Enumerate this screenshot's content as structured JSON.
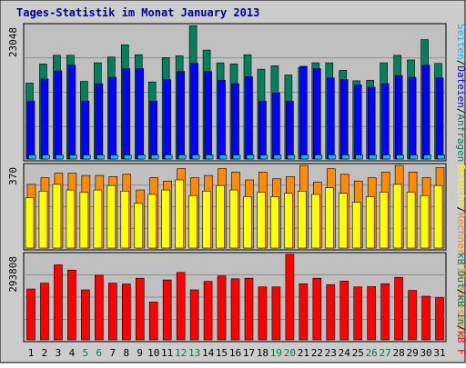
{
  "title": "Tages-Statistik im Monat January 2013",
  "colors": {
    "background": "#cccccc",
    "panel": "#c0c0c0",
    "border": "#000000",
    "title_text": "#0000aa",
    "anfragen": "#00805c",
    "dateien": "#0000ff",
    "seiten": "#00c0ff",
    "rechner": "#ff8c00",
    "besuche": "#ffff00",
    "kb_f": "#ff0000",
    "weekend_label": "#008040",
    "weekday_label": "#000000"
  },
  "chart_data": [
    {
      "type": "bar",
      "ymax_label": "23048",
      "legend": [
        {
          "name": "Anfragen",
          "color": "#00805c"
        },
        {
          "name": "Dateien",
          "color": "#0000ff"
        },
        {
          "name": "Seiten",
          "color": "#00c0ff"
        }
      ],
      "separators": [
        "/"
      ],
      "series": [
        {
          "name": "Anfragen",
          "values": [
            13100,
            16400,
            17900,
            17900,
            13400,
            16600,
            17600,
            19700,
            18000,
            13300,
            17500,
            17800,
            23000,
            18800,
            16600,
            16400,
            18000,
            15500,
            16100,
            14500,
            15800,
            16600,
            16600,
            15300,
            13500,
            13600,
            16600,
            17900,
            17100,
            20600,
            16500
          ]
        },
        {
          "name": "Dateien",
          "values": [
            10000,
            13800,
            15200,
            16200,
            10000,
            13000,
            14100,
            15600,
            15600,
            10000,
            13700,
            15100,
            16500,
            15100,
            13600,
            13000,
            14200,
            10000,
            11400,
            10000,
            16000,
            15600,
            14000,
            13700,
            12800,
            12400,
            13000,
            14400,
            14100,
            16200,
            14000
          ]
        },
        {
          "name": "Seiten",
          "values": [
            700,
            700,
            700,
            700,
            700,
            700,
            700,
            700,
            700,
            700,
            700,
            700,
            700,
            700,
            700,
            700,
            700,
            700,
            700,
            700,
            700,
            700,
            700,
            700,
            700,
            700,
            700,
            700,
            700,
            700,
            700
          ]
        }
      ],
      "ymax": 23048
    },
    {
      "type": "bar",
      "ymax_label": "370",
      "legend": [
        {
          "name": "Rechner (IP-Adressen)",
          "color": "#ff8c00"
        },
        {
          "name": "Besuche",
          "color": "#ffff00"
        }
      ],
      "separators": [
        "/"
      ],
      "series": [
        {
          "name": "Rechner (IP-Adressen)",
          "values": [
            285,
            315,
            335,
            335,
            325,
            325,
            320,
            330,
            260,
            315,
            300,
            355,
            315,
            325,
            355,
            340,
            305,
            340,
            310,
            320,
            370,
            295,
            355,
            330,
            300,
            315,
            340,
            370,
            340,
            315,
            360
          ]
        },
        {
          "name": "Besuche",
          "values": [
            225,
            255,
            285,
            260,
            250,
            260,
            280,
            255,
            200,
            240,
            260,
            305,
            235,
            255,
            280,
            260,
            230,
            250,
            230,
            245,
            255,
            240,
            270,
            245,
            205,
            230,
            250,
            285,
            250,
            235,
            280
          ]
        }
      ],
      "ymax": 370
    },
    {
      "type": "bar",
      "ymax_label": "293808",
      "legend": [
        {
          "name": "kB F",
          "color": "#ff0000"
        },
        {
          "name": "kB In",
          "color": "#00805c"
        },
        {
          "name": "kB Out",
          "color": "#00805c"
        }
      ],
      "separators": [
        "/",
        "/"
      ],
      "series": [
        {
          "name": "kB F",
          "values": [
            175000,
            195000,
            258000,
            240000,
            172000,
            222000,
            195000,
            192000,
            212000,
            130000,
            206000,
            232000,
            172000,
            201000,
            220000,
            210000,
            212000,
            182000,
            182000,
            293808,
            193000,
            212000,
            190000,
            202000,
            182000,
            183000,
            193000,
            215000,
            170000,
            150000,
            145000
          ]
        }
      ],
      "ymax": 293808
    }
  ],
  "x_axis": {
    "labels": [
      "1",
      "2",
      "3",
      "4",
      "5",
      "6",
      "7",
      "8",
      "9",
      "10",
      "11",
      "12",
      "13",
      "14",
      "15",
      "16",
      "17",
      "18",
      "19",
      "20",
      "21",
      "22",
      "23",
      "24",
      "25",
      "26",
      "27",
      "28",
      "29",
      "30",
      "31"
    ],
    "weekend_days": [
      5,
      6,
      12,
      13,
      19,
      20,
      26,
      27
    ]
  }
}
